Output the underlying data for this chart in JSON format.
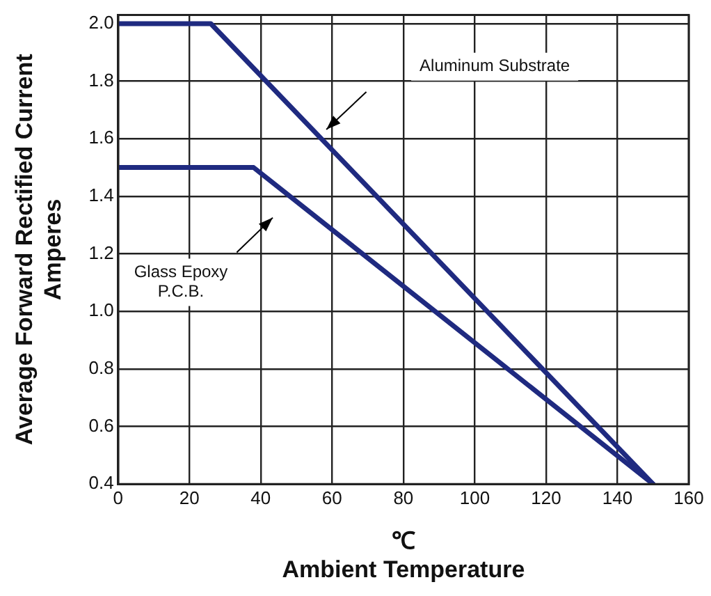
{
  "chart_data": {
    "type": "line",
    "xlabel": "℃\nAmbient Temperature",
    "ylabel": "Average Forward Rectified Current\nAmperes",
    "xlim": [
      0,
      160
    ],
    "xticks": [
      0,
      20,
      40,
      60,
      80,
      100,
      120,
      140,
      160
    ],
    "ylim": [
      0.4,
      2.03
    ],
    "yticks": [
      0.4,
      0.6,
      0.8,
      {
        "value": 1,
        "label": "1.0"
      },
      1.2,
      1.4,
      1.6,
      1.8,
      {
        "value": 2,
        "label": "2.0"
      }
    ],
    "grid": true,
    "legend": false,
    "marker": "none",
    "line_style": "solid",
    "series": [
      {
        "color": "#1f2a80",
        "x": [
          0,
          26,
          150
        ],
        "values": [
          2.0,
          2.0,
          0.4
        ]
      },
      {
        "color": "#1f2a80",
        "x": [
          0,
          38,
          150
        ],
        "values": [
          1.5,
          1.5,
          0.4
        ]
      }
    ],
    "annotations": [
      "Aluminum Substrate",
      "Glass Epoxy\nP.C.B."
    ]
  }
}
